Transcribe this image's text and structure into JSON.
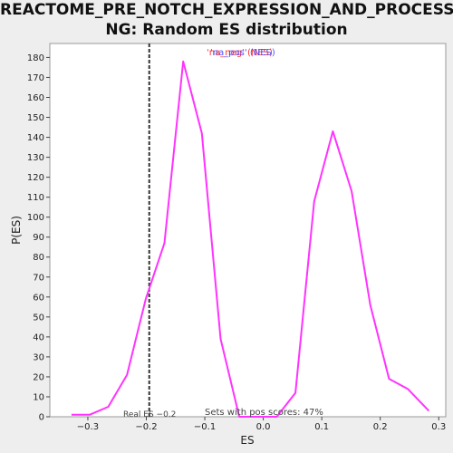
{
  "chart_data": {
    "type": "line",
    "title_lines": [
      "REACTOME_PRE_NOTCH_EXPRESSION_AND_PROCESSI",
      "NG: Random ES distribution"
    ],
    "xlabel": "ES",
    "ylabel": "P(ES)",
    "xlim": [
      -0.365,
      0.312
    ],
    "ylim": [
      0,
      187
    ],
    "x_ticks": [
      -0.3,
      -0.2,
      -0.1,
      0.0,
      0.1,
      0.2,
      0.3
    ],
    "x_tick_labels": [
      "−0.3",
      "−0.2",
      "−0.1",
      "0.0",
      "0.1",
      "0.2",
      "0.3"
    ],
    "y_ticks": [
      0,
      10,
      20,
      30,
      40,
      50,
      60,
      70,
      80,
      90,
      100,
      110,
      120,
      130,
      140,
      150,
      160,
      170,
      180
    ],
    "y_tick_labels": [
      "0",
      "10",
      "20",
      "30",
      "40",
      "50",
      "60",
      "70",
      "80",
      "90",
      "100",
      "110",
      "120",
      "130",
      "140",
      "150",
      "160",
      "170",
      "180"
    ],
    "grid": false,
    "series": [
      {
        "color": "#ff33ff",
        "x": [
          -0.328,
          -0.297,
          -0.265,
          -0.233,
          -0.201,
          -0.169,
          -0.137,
          -0.105,
          -0.073,
          -0.041,
          -0.009,
          0.023,
          0.055,
          0.087,
          0.119,
          0.151,
          0.183,
          0.215,
          0.247,
          0.283
        ],
        "y": [
          1,
          1,
          5,
          21,
          59,
          87,
          178,
          142,
          39,
          0,
          0,
          0,
          12,
          108,
          143,
          113,
          56,
          19,
          14,
          3
        ]
      }
    ],
    "real_es_line": {
      "x": -0.195,
      "color": "#333333",
      "style": "dashed"
    },
    "annotations": {
      "real_es": "Real ES −0.2",
      "pos_scores": "Sets with pos scores: 47%"
    },
    "legend": {
      "placement": "top-center",
      "back_text": "'na_neg' (NES)",
      "front_text": "'na_pos' (NES)",
      "back_color": "#ff3333",
      "front_color": "#3333ff"
    }
  }
}
